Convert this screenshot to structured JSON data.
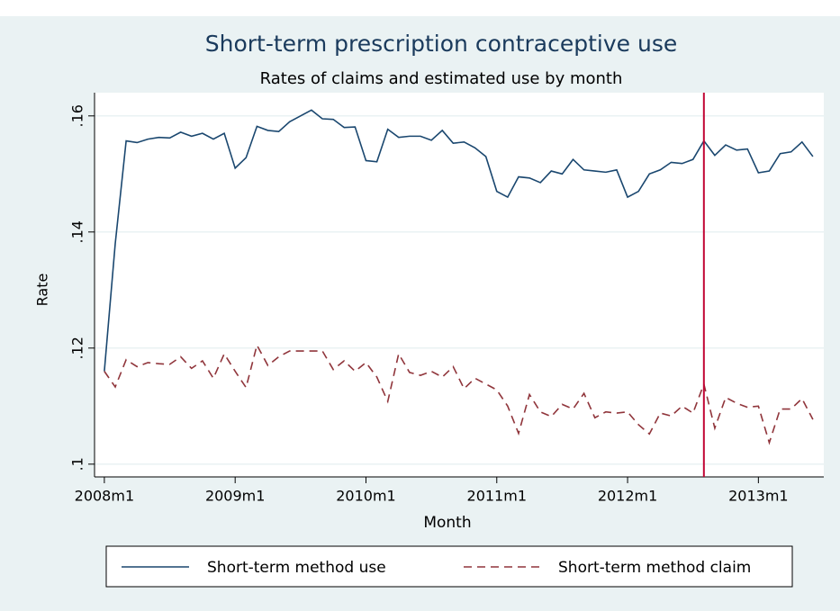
{
  "chart_data": {
    "type": "line",
    "title": "Short-term prescription contraceptive use",
    "subtitle": "Rates of claims and estimated use by month",
    "x_label": "Month",
    "y_label": "Rate",
    "x": [
      576,
      577,
      578,
      579,
      580,
      581,
      582,
      583,
      584,
      585,
      586,
      587,
      588,
      589,
      590,
      591,
      592,
      593,
      594,
      595,
      596,
      597,
      598,
      599,
      600,
      601,
      602,
      603,
      604,
      605,
      606,
      607,
      608,
      609,
      610,
      611,
      612,
      613,
      614,
      615,
      616,
      617,
      618,
      619,
      620,
      621,
      622,
      623,
      624,
      625,
      626,
      627,
      628,
      629,
      630,
      631,
      632,
      633,
      634,
      635,
      636,
      637,
      638,
      639,
      640,
      641
    ],
    "series": [
      {
        "name": "Short-term method use",
        "color": "#1a476f",
        "dash": "solid",
        "values": [
          0.116,
          0.138,
          0.1557,
          0.1554,
          0.156,
          0.1563,
          0.1562,
          0.1572,
          0.1565,
          0.157,
          0.156,
          0.157,
          0.151,
          0.1528,
          0.1582,
          0.1575,
          0.1573,
          0.159,
          0.16,
          0.161,
          0.1595,
          0.1594,
          0.158,
          0.1581,
          0.1523,
          0.1521,
          0.1577,
          0.1563,
          0.1565,
          0.1565,
          0.1558,
          0.1575,
          0.1553,
          0.1555,
          0.1545,
          0.153,
          0.147,
          0.146,
          0.1495,
          0.1493,
          0.1485,
          0.1505,
          0.15,
          0.1525,
          0.1507,
          0.1505,
          0.1503,
          0.1507,
          0.146,
          0.147,
          0.15,
          0.1507,
          0.152,
          0.1518,
          0.1525,
          0.1557,
          0.1532,
          0.155,
          0.1541,
          0.1543,
          0.1502,
          0.1505,
          0.1535,
          0.1538,
          0.1555,
          0.153
        ]
      },
      {
        "name": "Short-term method claim",
        "color": "#90353b",
        "dash": "dashed",
        "values": [
          0.116,
          0.1133,
          0.118,
          0.1168,
          0.1175,
          0.1173,
          0.1172,
          0.1185,
          0.1165,
          0.1178,
          0.1148,
          0.119,
          0.116,
          0.1132,
          0.1205,
          0.117,
          0.1185,
          0.1195,
          0.1195,
          0.1195,
          0.1195,
          0.1163,
          0.1178,
          0.116,
          0.1175,
          0.115,
          0.1108,
          0.119,
          0.1158,
          0.1153,
          0.116,
          0.115,
          0.1168,
          0.113,
          0.1148,
          0.1138,
          0.1128,
          0.11,
          0.1053,
          0.112,
          0.109,
          0.1082,
          0.1103,
          0.1095,
          0.1122,
          0.108,
          0.109,
          0.1088,
          0.109,
          0.1068,
          0.1052,
          0.1088,
          0.1083,
          0.11,
          0.1088,
          0.1138,
          0.1062,
          0.1115,
          0.1105,
          0.1098,
          0.11,
          0.1037,
          0.1095,
          0.1095,
          0.1113,
          0.1077
        ]
      }
    ],
    "xlim": [
      575.1,
      642.0
    ],
    "xticks": [
      {
        "value": 576,
        "label": "2008m1"
      },
      {
        "value": 588,
        "label": "2009m1"
      },
      {
        "value": 600,
        "label": "2010m1"
      },
      {
        "value": 612,
        "label": "2011m1"
      },
      {
        "value": 624,
        "label": "2012m1"
      },
      {
        "value": 636,
        "label": "2013m1"
      }
    ],
    "ylim": [
      0.0978,
      0.164
    ],
    "yticks": [
      {
        "value": 0.1,
        "label": ".1"
      },
      {
        "value": 0.12,
        "label": ".12"
      },
      {
        "value": 0.14,
        "label": ".14"
      },
      {
        "value": 0.16,
        "label": ".16"
      }
    ],
    "vline": {
      "value": 631,
      "color": "#c10534"
    },
    "grid": true,
    "legend": "bottom"
  }
}
